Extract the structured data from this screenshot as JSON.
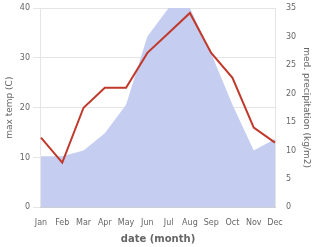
{
  "chart_data": {
    "type": "line",
    "categories": [
      "Jan",
      "Feb",
      "Mar",
      "Apr",
      "May",
      "Jun",
      "Jul",
      "Aug",
      "Sep",
      "Oct",
      "Nov",
      "Dec"
    ],
    "series": [
      {
        "type": "area",
        "color": "#c5cdf0",
        "axis": "y2",
        "values": [
          9,
          9,
          10,
          13,
          18,
          30,
          35,
          35,
          27,
          18,
          10,
          12
        ]
      },
      {
        "type": "line",
        "color": "#c0392b",
        "values": [
          14,
          9,
          20,
          24,
          24,
          31,
          35,
          39,
          31,
          26,
          16,
          13
        ]
      }
    ],
    "xlabel": "date (month)",
    "ylabel": "max temp (C)",
    "y2label": "med. precipitation (kg/m2)",
    "ylim": [
      0,
      40
    ],
    "yticks": [
      0,
      10,
      20,
      30,
      40
    ],
    "y2lim": [
      0,
      35
    ],
    "y2ticks": [
      0,
      5,
      10,
      15,
      20,
      25,
      30,
      35
    ],
    "grid": true
  }
}
